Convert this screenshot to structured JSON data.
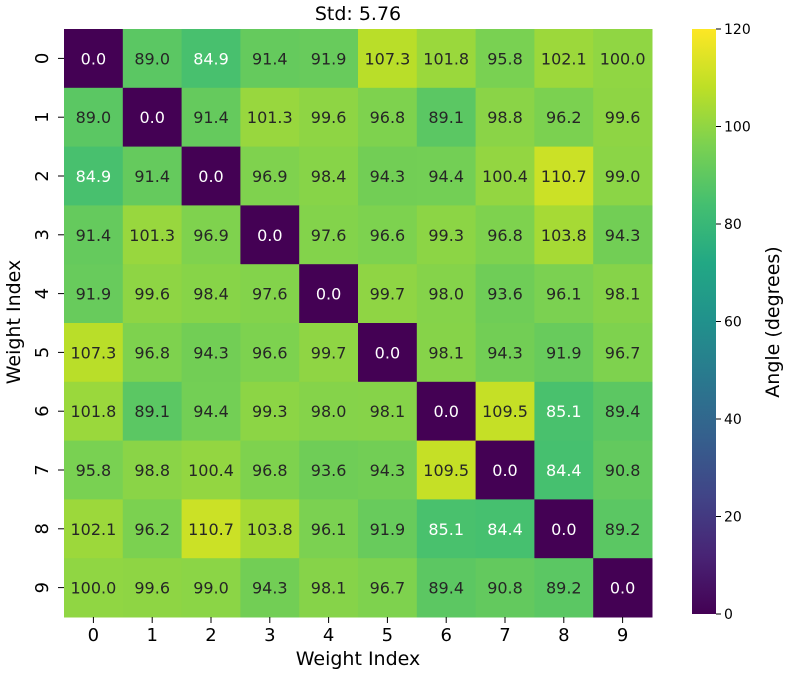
{
  "chart_data": {
    "type": "heatmap",
    "title": "Std: 5.76",
    "xlabel": "Weight Index",
    "ylabel": "Weight Index",
    "x_ticks": [
      "0",
      "1",
      "2",
      "3",
      "4",
      "5",
      "6",
      "7",
      "8",
      "9"
    ],
    "y_ticks": [
      "0",
      "1",
      "2",
      "3",
      "4",
      "5",
      "6",
      "7",
      "8",
      "9"
    ],
    "colorbar": {
      "label": "Angle (degrees)",
      "colormap": "viridis",
      "range": [
        0,
        120
      ],
      "ticks": [
        "0",
        "20",
        "40",
        "60",
        "80",
        "100",
        "120"
      ]
    },
    "values": [
      [
        0.0,
        89.0,
        84.9,
        91.4,
        91.9,
        107.3,
        101.8,
        95.8,
        102.1,
        100.0
      ],
      [
        89.0,
        0.0,
        91.4,
        101.3,
        99.6,
        96.8,
        89.1,
        98.8,
        96.2,
        99.6
      ],
      [
        84.9,
        91.4,
        0.0,
        96.9,
        98.4,
        94.3,
        94.4,
        100.4,
        110.7,
        99.0
      ],
      [
        91.4,
        101.3,
        96.9,
        0.0,
        97.6,
        96.6,
        99.3,
        96.8,
        103.8,
        94.3
      ],
      [
        91.9,
        99.6,
        98.4,
        97.6,
        0.0,
        99.7,
        98.0,
        93.6,
        96.1,
        98.1
      ],
      [
        107.3,
        96.8,
        94.3,
        96.6,
        99.7,
        0.0,
        98.1,
        94.3,
        91.9,
        96.7
      ],
      [
        101.8,
        89.1,
        94.4,
        99.3,
        98.0,
        98.1,
        0.0,
        109.5,
        85.1,
        89.4
      ],
      [
        95.8,
        98.8,
        100.4,
        96.8,
        93.6,
        94.3,
        109.5,
        0.0,
        84.4,
        90.8
      ],
      [
        102.1,
        96.2,
        110.7,
        103.8,
        96.1,
        91.9,
        85.1,
        84.4,
        0.0,
        89.2
      ],
      [
        100.0,
        99.6,
        99.0,
        94.3,
        98.1,
        96.7,
        89.4,
        90.8,
        89.2,
        0.0
      ]
    ]
  }
}
